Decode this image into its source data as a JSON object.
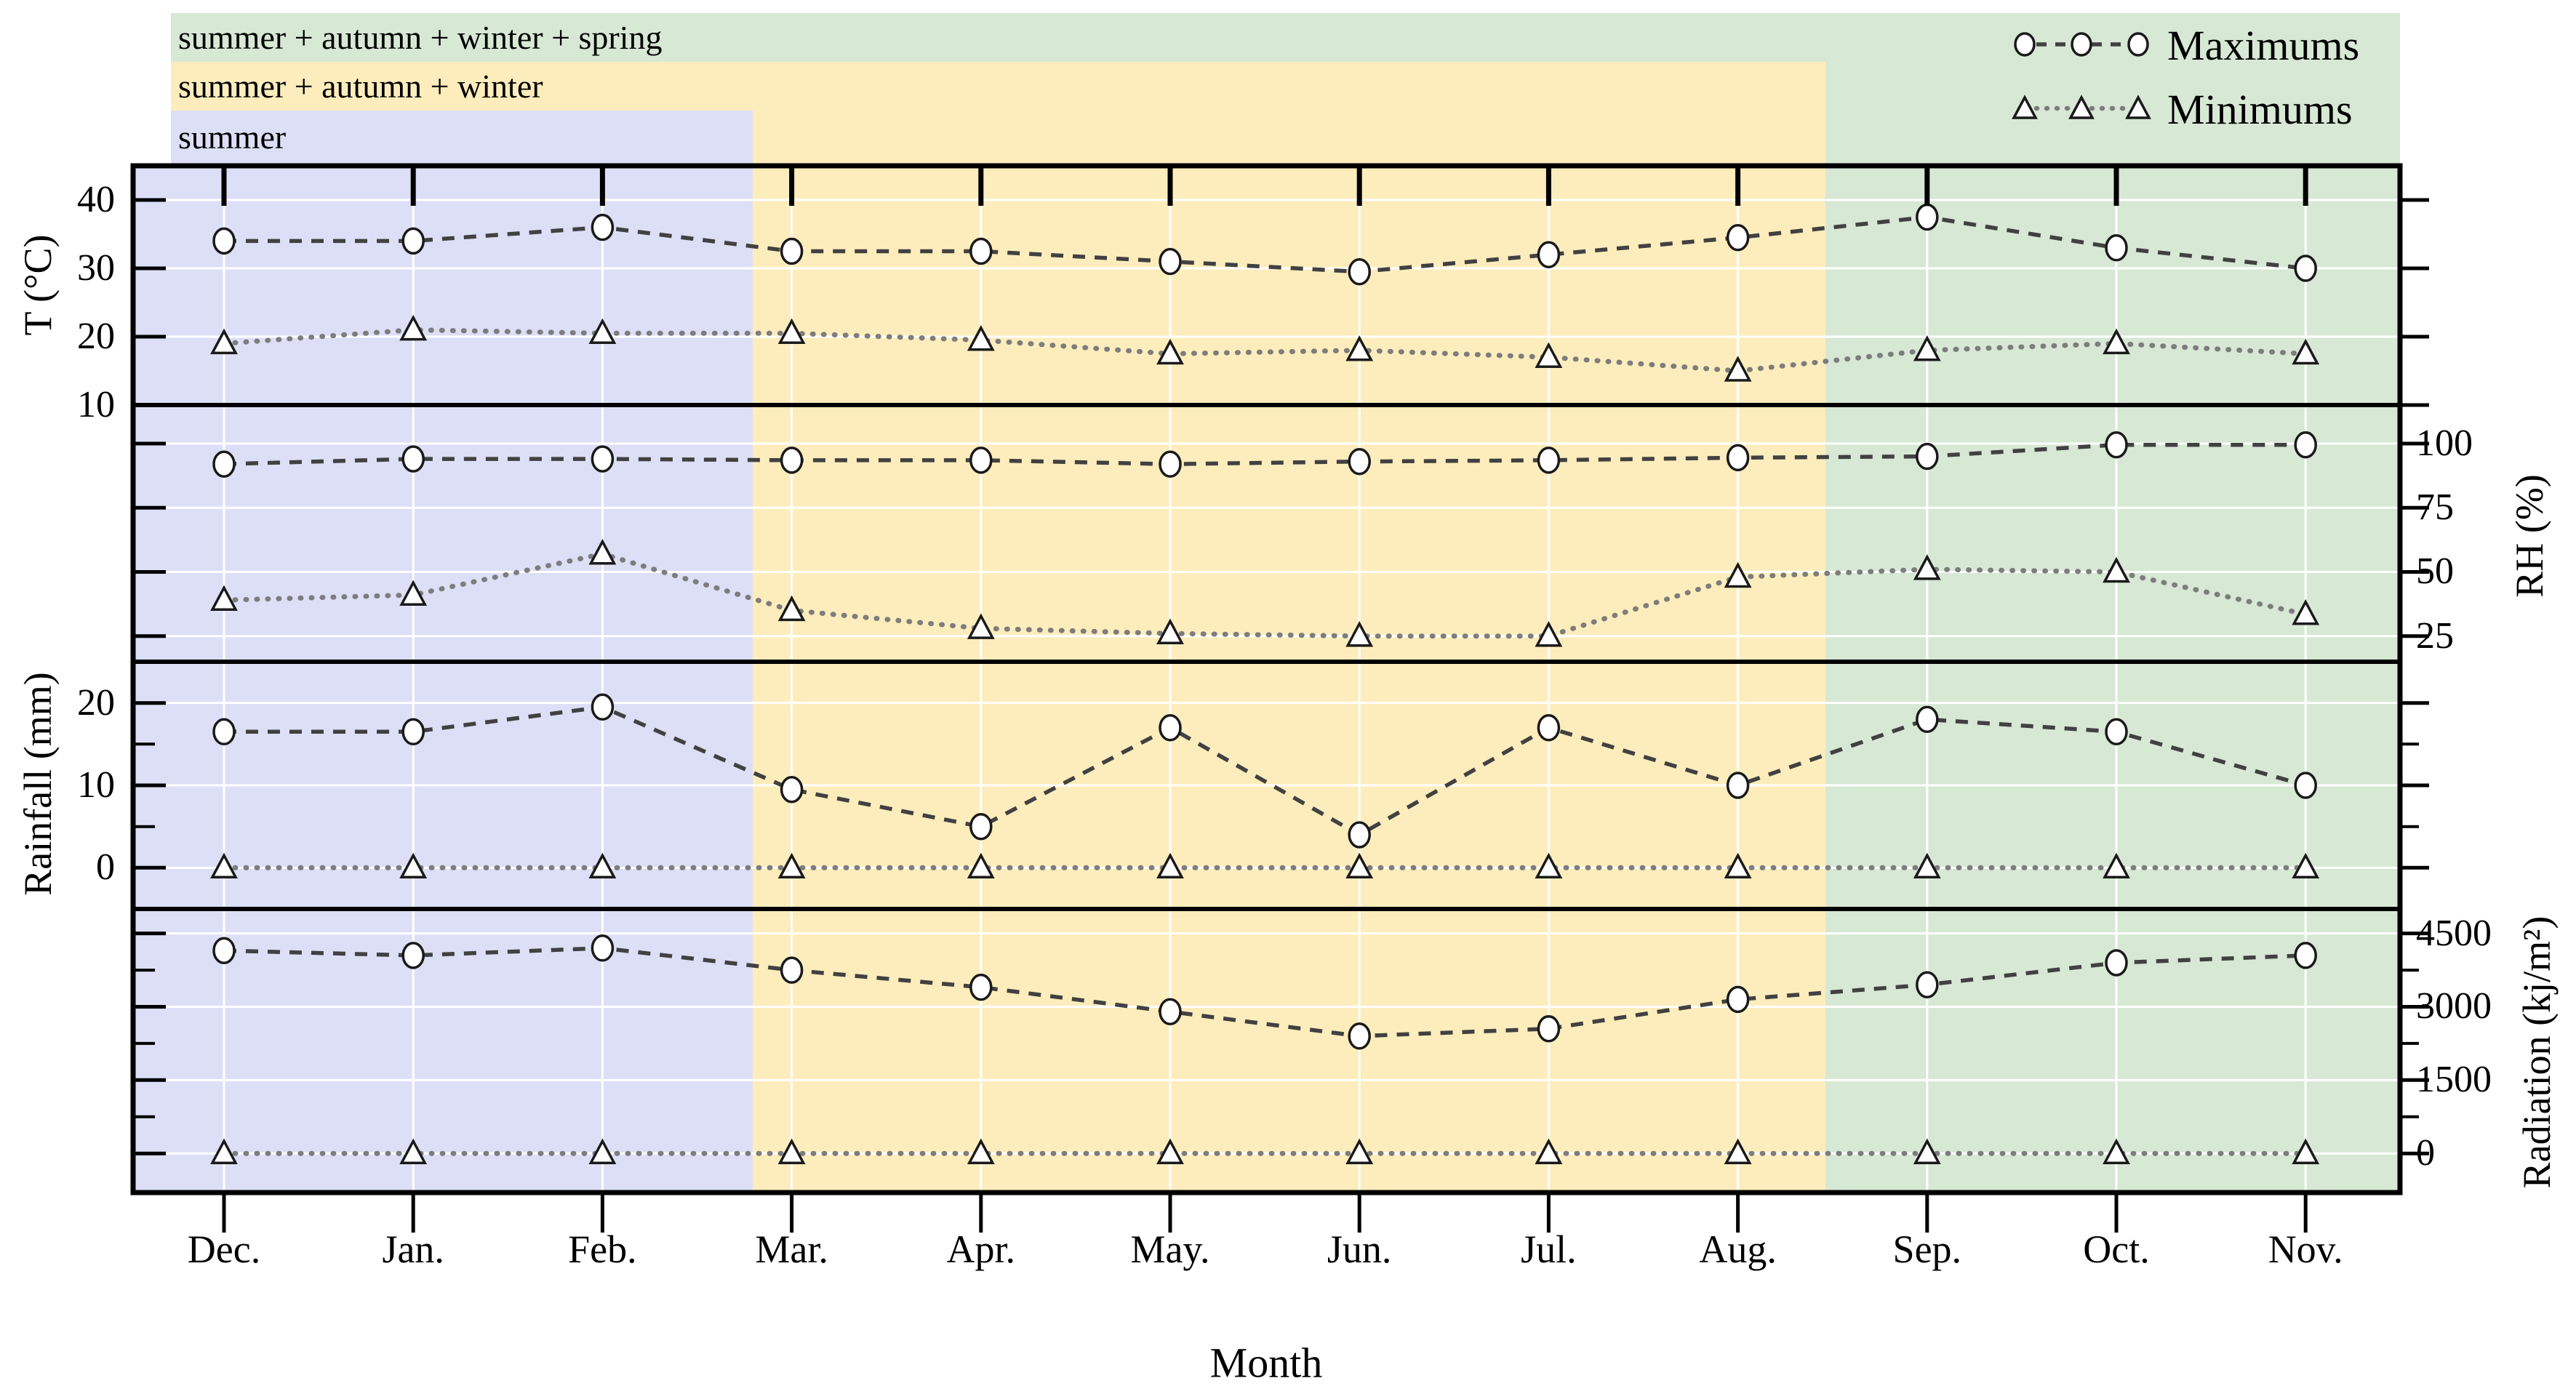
{
  "chart_data": {
    "type": "line",
    "title": "",
    "xlabel": "Month",
    "categories": [
      "Dec.",
      "Jan.",
      "Feb.",
      "Mar.",
      "Apr.",
      "May.",
      "Jun.",
      "Jul.",
      "Aug.",
      "Sep.",
      "Oct.",
      "Nov."
    ],
    "legend": [
      {
        "label": "Maximums",
        "marker": "circle",
        "linestyle": "dashed"
      },
      {
        "label": "Minimums",
        "marker": "triangle",
        "linestyle": "dotted"
      }
    ],
    "legend_position": "top-right",
    "grid": true,
    "season_regions": [
      {
        "label": "summer + autumn + winter + spring",
        "color": "#d7e8d5",
        "covers_months": "Dec.-Nov."
      },
      {
        "label": "summer + autumn + winter",
        "color": "#fdedbc",
        "covers_months": "Dec.-mid Sep."
      },
      {
        "label": "summer",
        "color": "#dcdff6",
        "covers_months": "Dec.-late Feb."
      }
    ],
    "panels": [
      {
        "ylabel": "T (°C)",
        "label_side": "left",
        "ylim": [
          10,
          45
        ],
        "yticks": [
          40,
          30,
          20,
          10
        ],
        "minor_yticks": [],
        "series": {
          "maximums": [
            34,
            34,
            36,
            32.5,
            32.5,
            31,
            29.5,
            32,
            34.5,
            37.5,
            33,
            30
          ],
          "minimums": [
            19,
            21,
            20.5,
            20.5,
            19.5,
            17.5,
            18,
            17,
            15,
            18,
            19,
            17.5
          ]
        }
      },
      {
        "ylabel": "RH (%)",
        "label_side": "right",
        "ylim": [
          15,
          115
        ],
        "yticks": [
          100,
          75,
          50,
          25
        ],
        "minor_yticks": [],
        "series": {
          "maximums": [
            92,
            94,
            94,
            93.5,
            93.5,
            92,
            93,
            93.5,
            94.5,
            95,
            99.5,
            99.5
          ],
          "minimums": [
            39,
            41,
            57,
            35,
            28,
            26,
            25,
            25,
            48,
            51,
            50,
            33.5
          ]
        }
      },
      {
        "ylabel": "Rainfall (mm)",
        "label_side": "left",
        "ylim": [
          -5,
          25
        ],
        "yticks": [
          20,
          10,
          0
        ],
        "minor_yticks": [
          15,
          5
        ],
        "series": {
          "maximums": [
            16.5,
            16.5,
            19.5,
            9.5,
            5,
            17,
            4,
            17,
            10,
            18,
            16.5,
            10
          ],
          "minimums": [
            0,
            0,
            0,
            0,
            0,
            0,
            0,
            0,
            0,
            0,
            0,
            0
          ]
        }
      },
      {
        "ylabel": "Radiation (kj/m²)",
        "label_side": "right",
        "ylim": [
          -800,
          5000
        ],
        "yticks": [
          4500,
          3000,
          1500,
          0
        ],
        "minor_yticks": [
          3750,
          2250,
          750
        ],
        "series": {
          "maximums": [
            4150,
            4050,
            4200,
            3750,
            3400,
            2900,
            2400,
            2550,
            3150,
            3450,
            3900,
            4050
          ],
          "minimums": [
            0,
            0,
            0,
            0,
            0,
            0,
            0,
            0,
            0,
            0,
            0,
            0
          ]
        }
      }
    ],
    "colors": {
      "maximums_line": "#414141",
      "minimums_line": "#7d7d7d",
      "marker_fill": "#ffffff",
      "marker_stroke": "#1a1a1a",
      "gridline": "#ffffff",
      "axis": "#000000"
    }
  }
}
